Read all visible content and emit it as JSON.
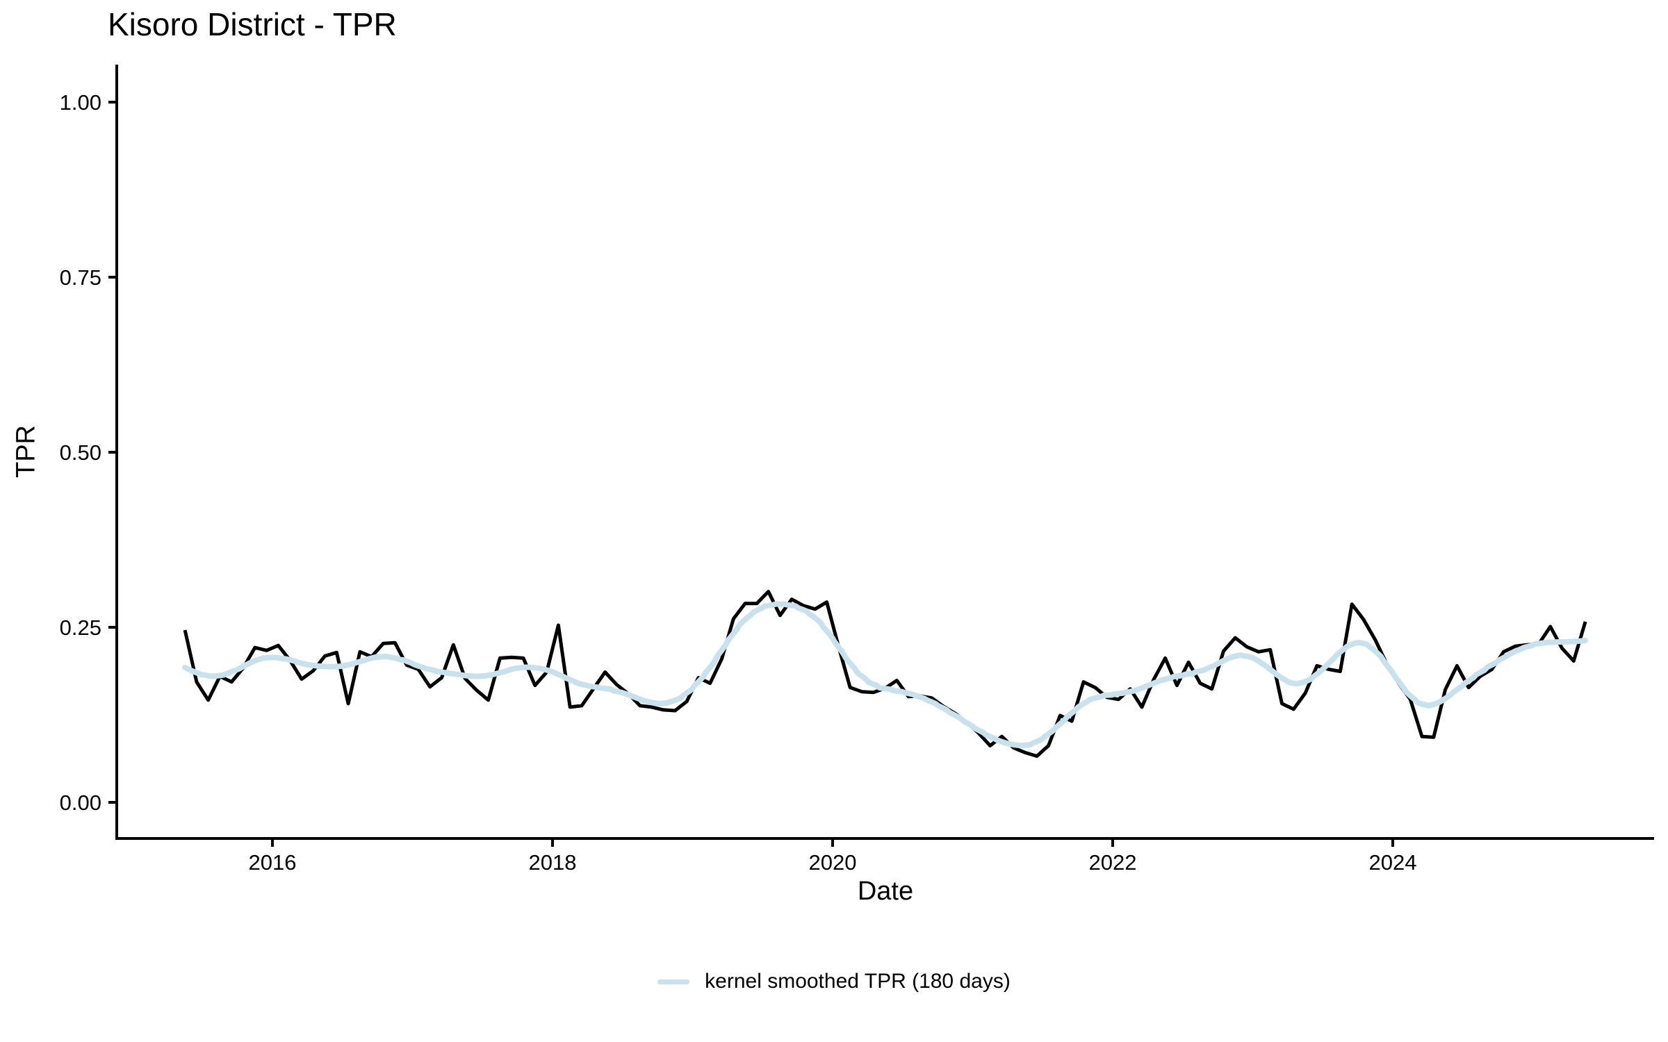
{
  "page": {
    "background": "#ffffff",
    "title": "Kisoro District - TPR"
  },
  "chart_data": {
    "type": "line",
    "title": "Kisoro District - TPR",
    "xlabel": "Date",
    "ylabel": "TPR",
    "ylim": [
      0,
      1
    ],
    "xlim_years": [
      2014.87,
      2025.87
    ],
    "grid": "off",
    "legend_position": "bottom",
    "y_ticks": {
      "values": [
        0.0,
        0.25,
        0.5,
        0.75,
        1.0
      ],
      "labels": [
        "0.00",
        "0.25",
        "0.50",
        "0.75",
        "1.00"
      ]
    },
    "x_ticks": {
      "values": [
        2016,
        2018,
        2020,
        2022,
        2024
      ],
      "labels": [
        "2016",
        "2018",
        "2020",
        "2022",
        "2024"
      ]
    },
    "series": [
      {
        "name": "TPR",
        "color": "#000000",
        "line_width": 5,
        "start": "2015-05",
        "frequency": "monthly",
        "values": [
          0.246,
          0.172,
          0.146,
          0.18,
          0.172,
          0.192,
          0.221,
          0.217,
          0.224,
          0.203,
          0.176,
          0.188,
          0.209,
          0.214,
          0.141,
          0.215,
          0.208,
          0.227,
          0.228,
          0.196,
          0.19,
          0.165,
          0.178,
          0.225,
          0.177,
          0.16,
          0.146,
          0.206,
          0.207,
          0.206,
          0.167,
          0.186,
          0.253,
          0.136,
          0.138,
          0.162,
          0.186,
          0.168,
          0.155,
          0.138,
          0.136,
          0.132,
          0.131,
          0.144,
          0.178,
          0.17,
          0.205,
          0.262,
          0.284,
          0.284,
          0.301,
          0.267,
          0.29,
          0.281,
          0.276,
          0.286,
          0.223,
          0.164,
          0.158,
          0.157,
          0.163,
          0.174,
          0.151,
          0.152,
          0.149,
          0.137,
          0.127,
          0.114,
          0.099,
          0.081,
          0.094,
          0.078,
          0.071,
          0.066,
          0.081,
          0.124,
          0.116,
          0.172,
          0.164,
          0.15,
          0.147,
          0.162,
          0.136,
          0.175,
          0.206,
          0.167,
          0.2,
          0.17,
          0.162,
          0.216,
          0.235,
          0.222,
          0.215,
          0.218,
          0.141,
          0.133,
          0.156,
          0.195,
          0.19,
          0.187,
          0.283,
          0.261,
          0.232,
          0.197,
          0.17,
          0.147,
          0.094,
          0.093,
          0.161,
          0.195,
          0.164,
          0.18,
          0.19,
          0.215,
          0.223,
          0.225,
          0.226,
          0.251,
          0.22,
          0.202,
          0.258
        ]
      },
      {
        "name": "kernel smoothed TPR (180 days)",
        "color": "#c9e1ec",
        "line_width": 8,
        "derived_from": "TPR",
        "smoothing": "gaussian kernel, 180-day window"
      }
    ]
  },
  "legend": {
    "items": [
      {
        "label": "kernel smoothed TPR (180 days)",
        "color": "#c9e1ec"
      }
    ]
  }
}
